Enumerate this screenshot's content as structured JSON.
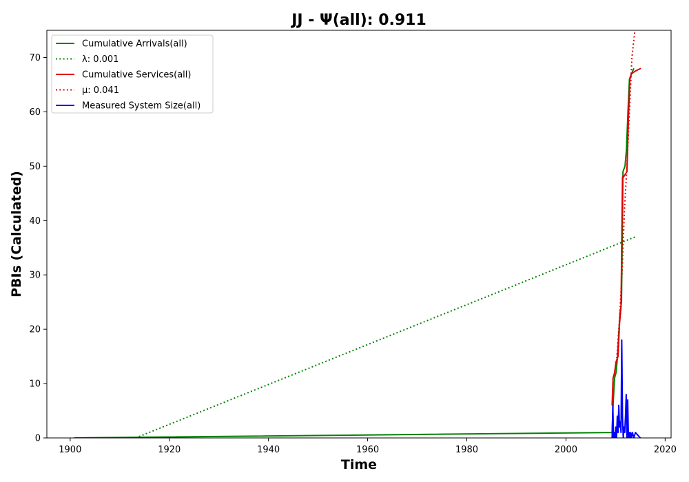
{
  "chart_data": {
    "type": "line",
    "title": "JJ -  Ψ(all): 0.911",
    "xlabel": "Time",
    "ylabel": "PBIs (Calculated)",
    "xlim": [
      1895.3,
      2021.2
    ],
    "ylim": [
      0,
      75
    ],
    "xticks": [
      1900,
      1920,
      1940,
      1960,
      1980,
      2000,
      2020
    ],
    "yticks": [
      0,
      10,
      20,
      30,
      40,
      50,
      60,
      70
    ],
    "grid": false,
    "legend_position": "top-left",
    "series": [
      {
        "name": "Cumulative Arrivals(all)",
        "style": "solid",
        "color": "#008000",
        "x": [
          1900.8,
          2009.3,
          2009.5,
          2009.8,
          2010.1,
          2010.4,
          2010.7,
          2010.9,
          2011.2,
          2011.5,
          2011.9,
          2012.2,
          2012.5,
          2012.8,
          2013.2,
          2013.7
        ],
        "y": [
          0,
          1,
          6,
          11,
          12,
          15,
          20,
          23,
          25,
          49,
          50,
          53,
          60,
          66,
          67,
          68
        ]
      },
      {
        "name": "λ: 0.001",
        "style": "dotted",
        "color": "#008000",
        "x": [
          1913.2,
          2014.0
        ],
        "y": [
          0,
          37
        ]
      },
      {
        "name": "Cumulative Services(all)",
        "style": "solid",
        "color": "#e00000",
        "x": [
          2009.3,
          2009.5,
          2009.8,
          2010.1,
          2010.5,
          2010.8,
          2011.1,
          2011.4,
          2011.6,
          2012.3,
          2012.6,
          2012.9,
          2013.2,
          2014.0,
          2015.1
        ],
        "y": [
          6,
          11,
          12,
          14,
          15,
          21,
          24,
          48,
          48,
          49,
          59,
          66,
          67,
          67.5,
          68
        ]
      },
      {
        "name": "μ: 0.041",
        "style": "dotted",
        "color": "#e00000",
        "x": [
          2010.2,
          2010.8,
          2011.3,
          2011.8,
          2012.3,
          2012.8,
          2013.3,
          2013.9
        ],
        "y": [
          14,
          22,
          30,
          42,
          50,
          60,
          70,
          75
        ]
      },
      {
        "name": "Measured System Size(all)",
        "style": "solid",
        "color": "#0000ff",
        "x": [
          2009.3,
          2009.45,
          2009.6,
          2009.75,
          2009.9,
          2010.05,
          2010.2,
          2010.35,
          2010.5,
          2010.65,
          2010.8,
          2010.95,
          2011.1,
          2011.25,
          2011.4,
          2011.55,
          2011.7,
          2011.85,
          2012.0,
          2012.15,
          2012.3,
          2012.45,
          2012.6,
          2012.75,
          2012.9,
          2013.05,
          2013.2,
          2013.4,
          2013.7,
          2014.0,
          2014.5,
          2015.0
        ],
        "y": [
          0,
          6,
          0,
          1,
          0,
          2,
          0,
          4,
          1,
          6,
          2,
          3,
          1,
          18,
          4,
          0,
          2,
          1,
          4,
          8,
          0,
          7,
          0,
          1,
          0,
          1,
          0,
          1,
          0,
          1,
          0.5,
          0
        ]
      }
    ]
  }
}
